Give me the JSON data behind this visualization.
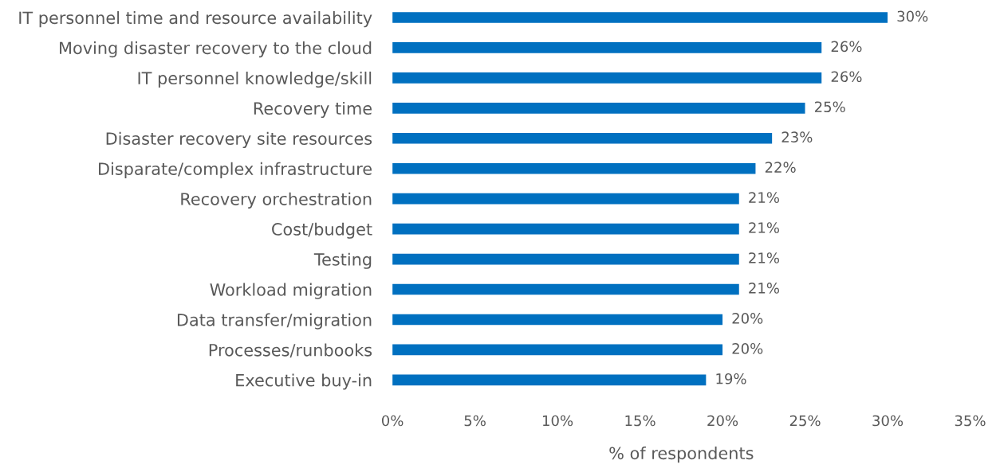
{
  "chart_data": {
    "type": "bar",
    "orientation": "horizontal",
    "xlabel": "% of respondents",
    "categories": [
      "IT personnel time and resource availability",
      "Moving disaster recovery to the cloud",
      "IT personnel knowledge/skill",
      "Recovery time",
      "Disaster recovery site resources",
      "Disparate/complex infrastructure",
      "Recovery orchestration",
      "Cost/budget",
      "Testing",
      "Workload migration",
      "Data transfer/migration",
      "Processes/runbooks",
      "Executive buy-in"
    ],
    "values": [
      30,
      26,
      26,
      25,
      23,
      22,
      21,
      21,
      21,
      21,
      20,
      20,
      19
    ],
    "value_labels": [
      "30%",
      "26%",
      "26%",
      "25%",
      "23%",
      "22%",
      "21%",
      "21%",
      "21%",
      "21%",
      "20%",
      "20%",
      "19%"
    ],
    "color": "#0070c0",
    "xlim": [
      0,
      35
    ],
    "xticks": [
      {
        "value": 0,
        "label": "0%"
      },
      {
        "value": 5,
        "label": "5%"
      },
      {
        "value": 10,
        "label": "10%"
      },
      {
        "value": 15,
        "label": "15%"
      },
      {
        "value": 20,
        "label": "20%"
      },
      {
        "value": 25,
        "label": "25%"
      },
      {
        "value": 30,
        "label": "30%"
      },
      {
        "value": 35,
        "label": "35%"
      }
    ],
    "grid": false,
    "legend": false
  }
}
